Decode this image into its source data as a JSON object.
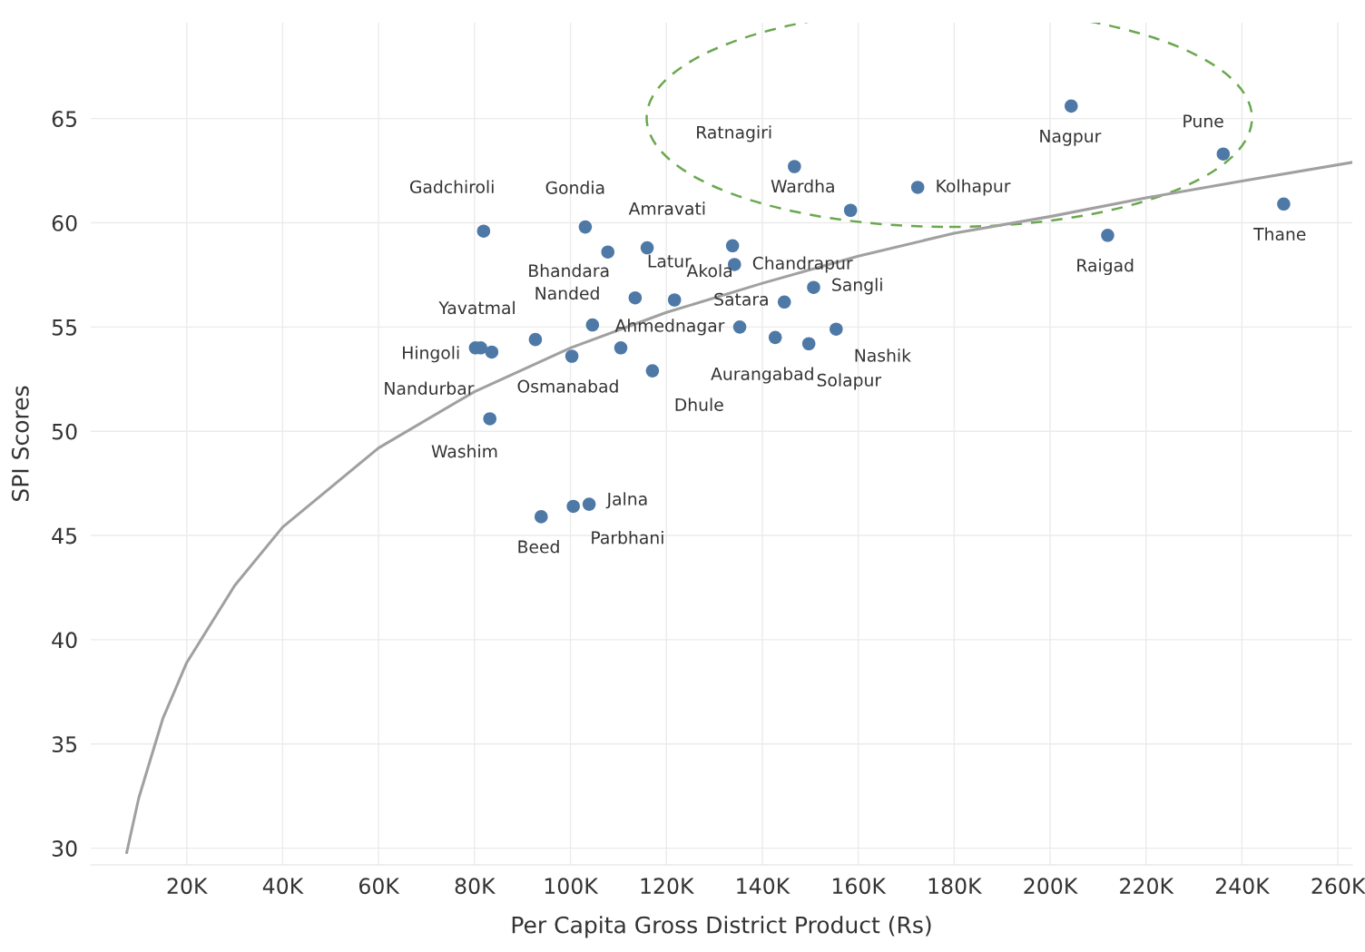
{
  "chart_data": {
    "type": "scatter",
    "xlabel": "Per Capita Gross District Product (Rs)",
    "ylabel": "SPI Scores",
    "xlim": [
      0,
      263
    ],
    "ylim": [
      29.2,
      69.6
    ],
    "xticks": [
      {
        "value": 20,
        "label": "20K"
      },
      {
        "value": 40,
        "label": "40K"
      },
      {
        "value": 60,
        "label": "60K"
      },
      {
        "value": 80,
        "label": "80K"
      },
      {
        "value": 100,
        "label": "100K"
      },
      {
        "value": 120,
        "label": "120K"
      },
      {
        "value": 140,
        "label": "140K"
      },
      {
        "value": 160,
        "label": "160K"
      },
      {
        "value": 180,
        "label": "180K"
      },
      {
        "value": 200,
        "label": "200K"
      },
      {
        "value": 220,
        "label": "220K"
      },
      {
        "value": 240,
        "label": "240K"
      },
      {
        "value": 260,
        "label": "260K"
      }
    ],
    "yticks": [
      30,
      35,
      40,
      45,
      50,
      55,
      60,
      65
    ],
    "grid": true,
    "series": [
      {
        "marker": "circle",
        "color": "#4e79a7",
        "x": [
          204.4,
          236.1,
          146.7,
          172.4,
          158.4,
          248.7,
          212.0,
          81.9,
          103.1,
          107.8,
          116.0,
          133.8,
          134.2,
          150.7,
          144.6,
          121.7,
          113.5,
          104.6,
          92.7,
          80.2,
          81.3,
          83.6,
          135.3,
          142.7,
          149.7,
          155.4,
          100.3,
          110.5,
          117.1,
          83.2,
          93.9,
          100.6,
          103.9
        ],
        "values": [
          65.6,
          63.3,
          62.7,
          61.7,
          60.6,
          60.9,
          59.4,
          59.6,
          59.8,
          58.6,
          58.8,
          58.9,
          58.0,
          56.9,
          56.2,
          56.3,
          56.4,
          55.1,
          54.4,
          54.0,
          54.0,
          53.8,
          55.0,
          54.5,
          54.2,
          54.9,
          53.6,
          54.0,
          52.9,
          50.6,
          45.9,
          46.4,
          46.5
        ]
      },
      {
        "type": "line",
        "color": "#a0a0a0",
        "x": [
          7.5,
          10,
          15,
          20,
          30,
          40,
          60,
          80,
          100,
          120,
          140,
          160,
          180,
          200,
          220,
          240,
          263
        ],
        "values": [
          29.8,
          32.4,
          36.2,
          38.9,
          42.6,
          45.4,
          49.2,
          51.9,
          54.0,
          55.7,
          57.1,
          58.4,
          59.5,
          60.3,
          61.2,
          62.0,
          62.9
        ]
      }
    ],
    "annotations": [
      {
        "text": "Ratnagiri",
        "x": 146.7,
        "y": 62.7
      },
      {
        "text": "Nagpur",
        "x": 204.4,
        "y": 65.6
      },
      {
        "text": "Pune",
        "x": 236.1,
        "y": 63.3
      },
      {
        "text": "Wardha",
        "x": 158.4,
        "y": 60.6
      },
      {
        "text": "Kolhapur",
        "x": 172.4,
        "y": 61.7
      },
      {
        "text": "Gadchiroli",
        "x": 81.9,
        "y": 59.6
      },
      {
        "text": "Gondia",
        "x": 103.1,
        "y": 59.8
      },
      {
        "text": "Amravati",
        "x": 116.0,
        "y": 58.8
      },
      {
        "text": "Thane",
        "x": 248.7,
        "y": 60.9
      },
      {
        "text": "Raigad",
        "x": 212.0,
        "y": 59.4
      },
      {
        "text": "Bhandara",
        "x": 107.8,
        "y": 58.6
      },
      {
        "text": "Chandrapur",
        "x": 134.2,
        "y": 58.0
      },
      {
        "text": "Latur",
        "x": 113.5,
        "y": 56.4
      },
      {
        "text": "Akola",
        "x": 121.7,
        "y": 56.3
      },
      {
        "text": "Sangli",
        "x": 150.7,
        "y": 56.9
      },
      {
        "text": "Nanded",
        "x": 104.6,
        "y": 55.1
      },
      {
        "text": "Satara",
        "x": 144.6,
        "y": 56.2
      },
      {
        "text": "Yavatmal",
        "x": 92.7,
        "y": 54.4
      },
      {
        "text": "Ahmednagar",
        "x": 135.3,
        "y": 55.0
      },
      {
        "text": "Hingoli",
        "x": 80.2,
        "y": 54.0
      },
      {
        "text": "Nashik",
        "x": 155.4,
        "y": 54.9
      },
      {
        "text": "Nandurbar",
        "x": 83.6,
        "y": 53.8
      },
      {
        "text": "Osmanabad",
        "x": 100.3,
        "y": 53.6
      },
      {
        "text": "Aurangabad",
        "x": 142.7,
        "y": 54.5
      },
      {
        "text": "Solapur",
        "x": 149.7,
        "y": 54.2
      },
      {
        "text": "Dhule",
        "x": 117.1,
        "y": 52.9
      },
      {
        "text": "Washim",
        "x": 83.2,
        "y": 50.6
      },
      {
        "text": "Jalna",
        "x": 103.9,
        "y": 46.5
      },
      {
        "text": "Parbhani",
        "x": 100.6,
        "y": 46.4
      },
      {
        "text": "Beed",
        "x": 93.9,
        "y": 45.9
      }
    ]
  }
}
